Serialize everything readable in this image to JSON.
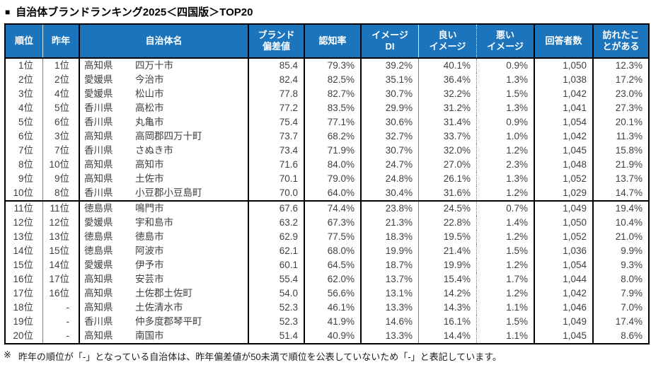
{
  "title": {
    "marker": "■",
    "text": "自治体ブランドランキング2025＜四国版＞TOP20"
  },
  "colors": {
    "header_bg": "#1C74BC",
    "header_text": "#FFFFFF",
    "body_text": "#3F3F3F",
    "border": "#000000"
  },
  "table": {
    "headers": [
      "順位",
      "昨年",
      "自治体名",
      "ブランド\n偏差値",
      "認知率",
      "イメージ\nDI",
      "良い\nイメージ",
      "悪い\nイメージ",
      "回答者数",
      "訪れたこ\nとがある"
    ],
    "rows": [
      {
        "rank": "1位",
        "prev": "1位",
        "pref": "高知県",
        "city": "四万十市",
        "dev": "85.4",
        "rec": "79.3%",
        "di": "39.2%",
        "good": "40.1%",
        "bad": "0.9%",
        "resp": "1,050",
        "visited": "12.3%"
      },
      {
        "rank": "2位",
        "prev": "2位",
        "pref": "愛媛県",
        "city": "今治市",
        "dev": "82.4",
        "rec": "82.5%",
        "di": "35.1%",
        "good": "36.4%",
        "bad": "1.3%",
        "resp": "1,038",
        "visited": "17.2%"
      },
      {
        "rank": "3位",
        "prev": "4位",
        "pref": "愛媛県",
        "city": "松山市",
        "dev": "77.8",
        "rec": "82.7%",
        "di": "30.7%",
        "good": "32.2%",
        "bad": "1.5%",
        "resp": "1,042",
        "visited": "23.0%"
      },
      {
        "rank": "4位",
        "prev": "5位",
        "pref": "香川県",
        "city": "高松市",
        "dev": "77.2",
        "rec": "83.5%",
        "di": "29.9%",
        "good": "31.2%",
        "bad": "1.3%",
        "resp": "1,041",
        "visited": "27.3%"
      },
      {
        "rank": "5位",
        "prev": "6位",
        "pref": "香川県",
        "city": "丸亀市",
        "dev": "75.4",
        "rec": "77.1%",
        "di": "30.6%",
        "good": "31.4%",
        "bad": "0.9%",
        "resp": "1,054",
        "visited": "20.1%"
      },
      {
        "rank": "6位",
        "prev": "3位",
        "pref": "高知県",
        "city": "高岡郡四万十町",
        "dev": "73.7",
        "rec": "68.2%",
        "di": "32.7%",
        "good": "33.7%",
        "bad": "1.0%",
        "resp": "1,042",
        "visited": "11.3%"
      },
      {
        "rank": "7位",
        "prev": "7位",
        "pref": "香川県",
        "city": "さぬき市",
        "dev": "73.4",
        "rec": "71.9%",
        "di": "30.7%",
        "good": "32.0%",
        "bad": "1.2%",
        "resp": "1,045",
        "visited": "15.8%"
      },
      {
        "rank": "8位",
        "prev": "10位",
        "pref": "高知県",
        "city": "高知市",
        "dev": "71.6",
        "rec": "84.0%",
        "di": "24.7%",
        "good": "27.0%",
        "bad": "2.3%",
        "resp": "1,048",
        "visited": "21.9%"
      },
      {
        "rank": "9位",
        "prev": "9位",
        "pref": "高知県",
        "city": "土佐市",
        "dev": "70.1",
        "rec": "79.0%",
        "di": "24.8%",
        "good": "26.1%",
        "bad": "1.3%",
        "resp": "1,052",
        "visited": "13.7%"
      },
      {
        "rank": "10位",
        "prev": "8位",
        "pref": "香川県",
        "city": "小豆郡小豆島町",
        "dev": "70.0",
        "rec": "64.0%",
        "di": "30.4%",
        "good": "31.6%",
        "bad": "1.2%",
        "resp": "1,029",
        "visited": "14.7%"
      },
      {
        "rank": "11位",
        "prev": "11位",
        "pref": "徳島県",
        "city": "鳴門市",
        "dev": "67.6",
        "rec": "74.4%",
        "di": "23.8%",
        "good": "24.5%",
        "bad": "0.7%",
        "resp": "1,049",
        "visited": "19.4%"
      },
      {
        "rank": "12位",
        "prev": "12位",
        "pref": "愛媛県",
        "city": "宇和島市",
        "dev": "63.2",
        "rec": "67.3%",
        "di": "21.3%",
        "good": "22.8%",
        "bad": "1.4%",
        "resp": "1,050",
        "visited": "10.4%"
      },
      {
        "rank": "13位",
        "prev": "13位",
        "pref": "徳島県",
        "city": "徳島市",
        "dev": "62.9",
        "rec": "77.5%",
        "di": "18.3%",
        "good": "19.5%",
        "bad": "1.2%",
        "resp": "1,052",
        "visited": "21.0%"
      },
      {
        "rank": "14位",
        "prev": "15位",
        "pref": "徳島県",
        "city": "阿波市",
        "dev": "62.1",
        "rec": "68.0%",
        "di": "19.9%",
        "good": "21.4%",
        "bad": "1.5%",
        "resp": "1,036",
        "visited": "9.9%"
      },
      {
        "rank": "15位",
        "prev": "14位",
        "pref": "愛媛県",
        "city": "伊予市",
        "dev": "60.1",
        "rec": "64.5%",
        "di": "18.7%",
        "good": "19.9%",
        "bad": "1.2%",
        "resp": "1,054",
        "visited": "9.3%"
      },
      {
        "rank": "16位",
        "prev": "17位",
        "pref": "高知県",
        "city": "安芸市",
        "dev": "55.4",
        "rec": "62.0%",
        "di": "13.7%",
        "good": "15.4%",
        "bad": "1.7%",
        "resp": "1,044",
        "visited": "8.0%"
      },
      {
        "rank": "17位",
        "prev": "16位",
        "pref": "高知県",
        "city": "土佐郡土佐町",
        "dev": "54.0",
        "rec": "56.6%",
        "di": "13.1%",
        "good": "14.2%",
        "bad": "1.2%",
        "resp": "1,042",
        "visited": "7.9%"
      },
      {
        "rank": "18位",
        "prev": "-",
        "pref": "高知県",
        "city": "土佐清水市",
        "dev": "52.3",
        "rec": "46.1%",
        "di": "13.3%",
        "good": "14.3%",
        "bad": "1.1%",
        "resp": "1,046",
        "visited": "7.0%"
      },
      {
        "rank": "19位",
        "prev": "-",
        "pref": "香川県",
        "city": "仲多度郡琴平町",
        "dev": "52.3",
        "rec": "41.9%",
        "di": "14.6%",
        "good": "16.1%",
        "bad": "1.5%",
        "resp": "1,049",
        "visited": "17.4%"
      },
      {
        "rank": "20位",
        "prev": "-",
        "pref": "高知県",
        "city": "南国市",
        "dev": "51.4",
        "rec": "40.9%",
        "di": "13.3%",
        "good": "14.4%",
        "bad": "1.1%",
        "resp": "1,045",
        "visited": "8.6%"
      }
    ]
  },
  "footnote": {
    "marker": "※",
    "text": "昨年の順位が「-」となっている自治体は、昨年偏差値が50未満で順位を公表していないため「-」と表記しています。"
  }
}
